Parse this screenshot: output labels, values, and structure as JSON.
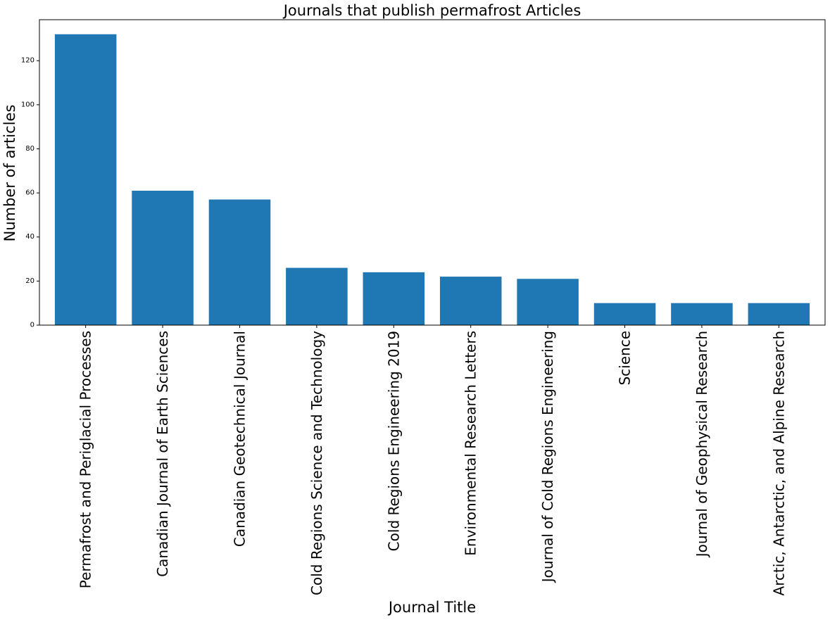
{
  "chart_data": {
    "type": "bar",
    "title": "Journals that publish permafrost Articles",
    "xlabel": "Journal Title",
    "ylabel": "Number of articles",
    "categories": [
      "Permafrost and Periglacial Processes",
      "Canadian Journal of Earth Sciences",
      "Canadian Geotechnical Journal",
      "Cold Regions Science and Technology",
      "Cold Regions Engineering 2019",
      "Environmental Research Letters",
      "Journal of Cold Regions Engineering",
      "Science",
      "Journal of Geophysical Research",
      "Arctic, Antarctic, and Alpine Research"
    ],
    "values": [
      132,
      61,
      57,
      26,
      24,
      22,
      21,
      10,
      10,
      10
    ],
    "ylim": [
      0,
      138.6
    ],
    "yticks": [
      0,
      20,
      40,
      60,
      80,
      100,
      120
    ],
    "grid": false,
    "legend": false,
    "bar_color": "#1f77b4"
  }
}
